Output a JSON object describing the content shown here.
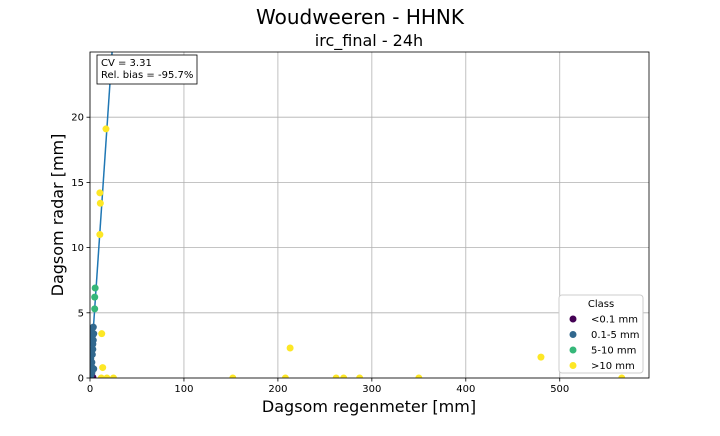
{
  "chart_data": {
    "type": "scatter",
    "title": "Woudweeren - HHNK",
    "subtitle": "irc_final - 24h",
    "xlabel": "Dagsom regenmeter [mm]",
    "ylabel": "Dagsom radar [mm]",
    "xlim": [
      0,
      595
    ],
    "ylim": [
      0,
      25
    ],
    "xticks": [
      0,
      100,
      200,
      300,
      400,
      500
    ],
    "yticks": [
      0,
      5,
      10,
      15,
      20
    ],
    "grid": true,
    "stats": {
      "cv_label": "CV = 3.31",
      "bias_label": "Rel. bias = -95.7%"
    },
    "fit_line": {
      "x": [
        0,
        23.5
      ],
      "y": [
        0,
        25
      ]
    },
    "legend": {
      "title": "Class",
      "position": "lower-right"
    },
    "series": [
      {
        "name": "<0.1 mm",
        "color": "#440154",
        "points": [
          [
            0.1,
            0.05
          ],
          [
            0.3,
            0.02
          ],
          [
            0.5,
            0.08
          ],
          [
            1.0,
            0.04
          ],
          [
            2.0,
            0.05
          ],
          [
            3.0,
            0.06
          ],
          [
            0.8,
            0.1
          ],
          [
            1.5,
            0.0
          ]
        ]
      },
      {
        "name": "0.1-5 mm",
        "color": "#31688e",
        "points": [
          [
            0.5,
            0.3
          ],
          [
            1.0,
            0.6
          ],
          [
            1.5,
            0.9
          ],
          [
            2.0,
            1.2
          ],
          [
            0.8,
            1.5
          ],
          [
            2.5,
            1.8
          ],
          [
            3.0,
            2.2
          ],
          [
            3.0,
            2.6
          ],
          [
            3.5,
            2.9
          ],
          [
            2.0,
            3.1
          ],
          [
            3.0,
            3.3
          ],
          [
            4.0,
            3.4
          ],
          [
            3.5,
            3.9
          ],
          [
            1.0,
            0.2
          ],
          [
            2.0,
            0.4
          ],
          [
            4.0,
            0.7
          ],
          [
            1.0,
            2.0
          ],
          [
            1.5,
            3.6
          ]
        ]
      },
      {
        "name": "5-10 mm",
        "color": "#35b779",
        "points": [
          [
            5.0,
            5.3
          ],
          [
            5.0,
            6.2
          ],
          [
            5.5,
            6.9
          ]
        ]
      },
      {
        "name": ">10 mm",
        "color": "#fde725",
        "points": [
          [
            17.0,
            19.1
          ],
          [
            10.5,
            14.2
          ],
          [
            11.0,
            13.4
          ],
          [
            10.5,
            11.0
          ],
          [
            12.5,
            3.4
          ],
          [
            13.5,
            0.8
          ],
          [
            213.0,
            2.3
          ],
          [
            480.0,
            1.6
          ],
          [
            12.0,
            0.0
          ],
          [
            18.0,
            0.0
          ],
          [
            25.0,
            0.0
          ],
          [
            152.0,
            0.0
          ],
          [
            208.0,
            0.0
          ],
          [
            262.0,
            0.0
          ],
          [
            270.0,
            0.0
          ],
          [
            287.0,
            0.0
          ],
          [
            350.0,
            0.0
          ],
          [
            566.0,
            0.0
          ]
        ]
      }
    ]
  }
}
